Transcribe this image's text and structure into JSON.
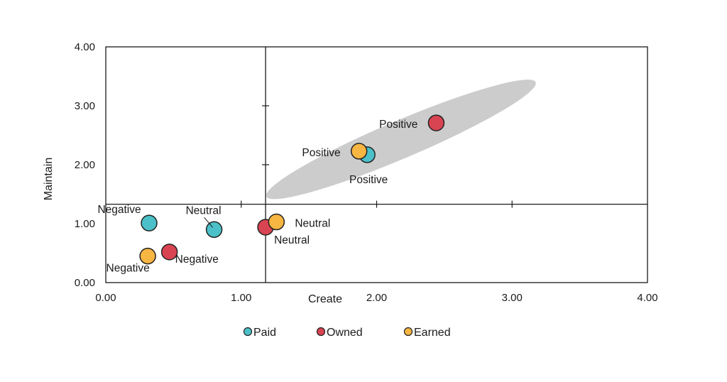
{
  "chart_data": {
    "type": "scatter",
    "title": "",
    "xlabel": "Create",
    "ylabel": "Maintain",
    "xlim": [
      0,
      4
    ],
    "ylim": [
      0,
      4
    ],
    "x_ticks": [
      "0.00",
      "1.00",
      "2.00",
      "3.00",
      "4.00"
    ],
    "y_ticks": [
      "0.00",
      "1.00",
      "2.00",
      "3.00",
      "4.00"
    ],
    "x_tick_values": [
      0,
      1,
      2,
      3,
      4
    ],
    "y_tick_values": [
      0,
      1,
      2,
      3,
      4
    ],
    "quadrant_lines": {
      "x": 1.18,
      "y": 1.33
    },
    "grid": false,
    "legend_position": "bottom",
    "highlight": {
      "center": [
        2.18,
        2.43
      ],
      "radius": [
        1.08,
        0.32
      ],
      "angle_deg": -23
    },
    "series": [
      {
        "name": "Paid",
        "color": "#4BC0C8",
        "points": [
          {
            "x": 0.32,
            "y": 1.01,
            "label": "Negative"
          },
          {
            "x": 0.8,
            "y": 0.9,
            "label": "Neutral"
          },
          {
            "x": 1.93,
            "y": 2.17,
            "label": "Positive"
          }
        ]
      },
      {
        "name": "Owned",
        "color": "#D94452",
        "points": [
          {
            "x": 0.47,
            "y": 0.52,
            "label": "Negative"
          },
          {
            "x": 1.18,
            "y": 0.94,
            "label": "Neutral"
          },
          {
            "x": 2.44,
            "y": 2.71,
            "label": "Positive"
          }
        ]
      },
      {
        "name": "Earned",
        "color": "#F7B541",
        "points": [
          {
            "x": 0.31,
            "y": 0.45,
            "label": "Negative"
          },
          {
            "x": 1.26,
            "y": 1.03,
            "label": "Neutral"
          },
          {
            "x": 1.87,
            "y": 2.23,
            "label": "Positive"
          }
        ]
      }
    ]
  }
}
